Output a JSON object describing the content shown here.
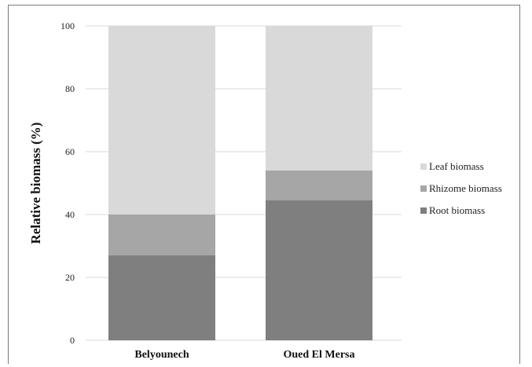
{
  "chart_data": {
    "type": "bar",
    "stacked": true,
    "categories": [
      "Belyounech",
      "Oued El Mersa"
    ],
    "series": [
      {
        "name": "Root biomass",
        "values": [
          27,
          44.5
        ],
        "color": "#7f7f7f"
      },
      {
        "name": "Rhizome biomass",
        "values": [
          13,
          9.5
        ],
        "color": "#a6a6a6"
      },
      {
        "name": "Leaf biomass",
        "values": [
          60,
          46
        ],
        "color": "#d9d9d9"
      }
    ],
    "title": "",
    "xlabel": "",
    "ylabel": "Relative biomass  (%)",
    "ylim": [
      0,
      100
    ],
    "yticks": [
      0,
      20,
      40,
      60,
      80,
      100
    ],
    "grid": true,
    "legend_position": "right",
    "legend_order": [
      "Leaf biomass",
      "Rhizome biomass",
      "Root biomass"
    ]
  }
}
